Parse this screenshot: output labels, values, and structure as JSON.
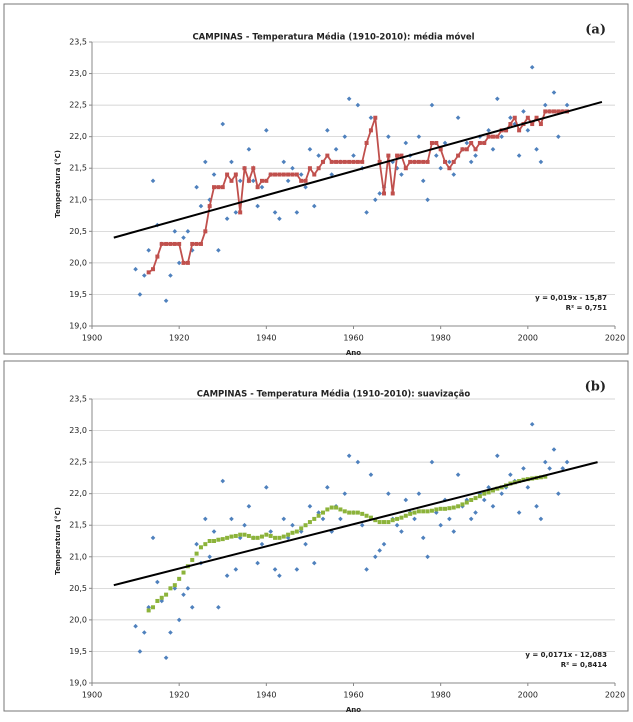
{
  "chart_data": [
    {
      "type": "scatter",
      "title": "CAMPINAS - Temperatura Média (1910-2010): média móvel",
      "panel_label": "(a)",
      "x_label": "Ano",
      "y_label": "Temperatura (°C)",
      "annotations": [
        "y = 0,019x - 15,87",
        "R² = 0,751"
      ],
      "xlim": [
        1900,
        2020
      ],
      "xticks": [
        1900,
        1920,
        1940,
        1960,
        1980,
        2000,
        2020
      ],
      "ylim": [
        19,
        23.5
      ],
      "yticks": [
        {
          "value": 19,
          "label": "19,0"
        },
        {
          "value": 19.5,
          "label": "19,5"
        },
        {
          "value": 20,
          "label": "20,0"
        },
        {
          "value": 20.5,
          "label": "20,5"
        },
        {
          "value": 21,
          "label": "21,0"
        },
        {
          "value": 21.5,
          "label": "21,5"
        },
        {
          "value": 22,
          "label": "22,0"
        },
        {
          "value": 22.5,
          "label": "22,5"
        },
        {
          "value": 23,
          "label": "23,0"
        },
        {
          "value": 23.5,
          "label": "23,5"
        }
      ],
      "grid": true,
      "series": [
        {
          "type": "scatter",
          "color": "#4f81bd",
          "x": [
            1910,
            1911,
            1912,
            1913,
            1914,
            1915,
            1916,
            1917,
            1918,
            1919,
            1920,
            1921,
            1922,
            1923,
            1924,
            1925,
            1926,
            1927,
            1928,
            1929,
            1930,
            1931,
            1932,
            1933,
            1934,
            1935,
            1936,
            1937,
            1938,
            1939,
            1940,
            1941,
            1942,
            1943,
            1944,
            1945,
            1946,
            1947,
            1948,
            1949,
            1950,
            1951,
            1952,
            1953,
            1954,
            1955,
            1956,
            1957,
            1958,
            1959,
            1960,
            1961,
            1962,
            1963,
            1964,
            1965,
            1966,
            1967,
            1968,
            1969,
            1970,
            1971,
            1972,
            1973,
            1974,
            1975,
            1976,
            1977,
            1978,
            1979,
            1980,
            1981,
            1982,
            1983,
            1984,
            1985,
            1986,
            1987,
            1988,
            1989,
            1990,
            1991,
            1992,
            1993,
            1994,
            1995,
            1996,
            1997,
            1998,
            1999,
            2000,
            2001,
            2002,
            2003,
            2004,
            2005,
            2006,
            2007,
            2008,
            2009
          ],
          "values": [
            19.9,
            19.5,
            19.8,
            20.2,
            21.3,
            20.6,
            20.3,
            19.4,
            19.8,
            20.5,
            20.0,
            20.4,
            20.5,
            20.2,
            21.2,
            20.9,
            21.6,
            21.0,
            21.4,
            20.2,
            22.2,
            20.7,
            21.6,
            20.8,
            21.3,
            21.5,
            21.8,
            21.3,
            20.9,
            21.2,
            22.1,
            21.4,
            20.8,
            20.7,
            21.6,
            21.3,
            21.5,
            20.8,
            21.4,
            21.2,
            21.8,
            20.9,
            21.7,
            21.6,
            22.1,
            21.4,
            21.8,
            21.6,
            22.0,
            22.6,
            21.7,
            22.5,
            21.5,
            20.8,
            22.3,
            21.0,
            21.1,
            21.2,
            22.0,
            21.6,
            21.5,
            21.4,
            21.9,
            21.7,
            21.6,
            22.0,
            21.3,
            21.0,
            22.5,
            21.7,
            21.5,
            21.9,
            21.6,
            21.4,
            22.3,
            21.8,
            21.9,
            21.6,
            21.7,
            22.0,
            21.9,
            22.1,
            21.8,
            22.6,
            22.0,
            22.1,
            22.3,
            22.2,
            21.7,
            22.4,
            22.1,
            23.1,
            21.8,
            21.6,
            22.5,
            22.4,
            22.7,
            22.0,
            22.4,
            22.5
          ]
        },
        {
          "type": "line",
          "marker": "square",
          "color": "#c0504d",
          "x": [
            1913,
            1914,
            1915,
            1916,
            1917,
            1918,
            1919,
            1920,
            1921,
            1922,
            1923,
            1924,
            1925,
            1926,
            1927,
            1928,
            1929,
            1930,
            1931,
            1932,
            1933,
            1934,
            1935,
            1936,
            1937,
            1938,
            1939,
            1940,
            1941,
            1942,
            1943,
            1944,
            1945,
            1946,
            1947,
            1948,
            1949,
            1950,
            1951,
            1952,
            1953,
            1954,
            1955,
            1956,
            1957,
            1958,
            1959,
            1960,
            1961,
            1962,
            1963,
            1964,
            1965,
            1966,
            1967,
            1968,
            1969,
            1970,
            1971,
            1972,
            1973,
            1974,
            1975,
            1976,
            1977,
            1978,
            1979,
            1980,
            1981,
            1982,
            1983,
            1984,
            1985,
            1986,
            1987,
            1988,
            1989,
            1990,
            1991,
            1992,
            1993,
            1994,
            1995,
            1996,
            1997,
            1998,
            1999,
            2000,
            2001,
            2002,
            2003,
            2004,
            2005,
            2006,
            2007,
            2008,
            2009
          ],
          "values": [
            19.85,
            19.9,
            20.1,
            20.3,
            20.3,
            20.3,
            20.3,
            20.3,
            20.0,
            20.0,
            20.3,
            20.3,
            20.3,
            20.5,
            20.9,
            21.2,
            21.2,
            21.2,
            21.4,
            21.3,
            21.4,
            20.8,
            21.5,
            21.3,
            21.5,
            21.2,
            21.3,
            21.3,
            21.4,
            21.4,
            21.4,
            21.4,
            21.4,
            21.4,
            21.4,
            21.3,
            21.3,
            21.5,
            21.4,
            21.5,
            21.6,
            21.7,
            21.6,
            21.6,
            21.6,
            21.6,
            21.6,
            21.6,
            21.6,
            21.6,
            21.9,
            22.1,
            22.3,
            21.6,
            21.1,
            21.7,
            21.1,
            21.7,
            21.7,
            21.5,
            21.6,
            21.6,
            21.6,
            21.6,
            21.6,
            21.9,
            21.9,
            21.8,
            21.6,
            21.5,
            21.6,
            21.7,
            21.8,
            21.8,
            21.9,
            21.8,
            21.9,
            21.9,
            22.0,
            22.0,
            22.0,
            22.1,
            22.1,
            22.2,
            22.3,
            22.1,
            22.2,
            22.3,
            22.2,
            22.3,
            22.2,
            22.4,
            22.4,
            22.4,
            22.4,
            22.4,
            22.4
          ]
        },
        {
          "type": "line",
          "color": "#000000",
          "x": [
            1905,
            2017
          ],
          "values": [
            20.4,
            22.55
          ]
        }
      ]
    },
    {
      "type": "scatter",
      "title": "CAMPINAS - Temperatura Média (1910-2010): suavização",
      "panel_label": "(b)",
      "x_label": "Ano",
      "y_label": "Temperatura (°C)",
      "annotations": [
        "y = 0,0171x - 12,083",
        "R² = 0,8414"
      ],
      "xlim": [
        1900,
        2020
      ],
      "xticks": [
        1900,
        1920,
        1940,
        1960,
        1980,
        2000,
        2020
      ],
      "ylim": [
        19,
        23.5
      ],
      "yticks": [
        {
          "value": 19,
          "label": "19,0"
        },
        {
          "value": 19.5,
          "label": "19,5"
        },
        {
          "value": 20,
          "label": "20,0"
        },
        {
          "value": 20.5,
          "label": "20,5"
        },
        {
          "value": 21,
          "label": "21,0"
        },
        {
          "value": 21.5,
          "label": "21,5"
        },
        {
          "value": 22,
          "label": "22,0"
        },
        {
          "value": 22.5,
          "label": "22,5"
        },
        {
          "value": 23,
          "label": "23,0"
        },
        {
          "value": 23.5,
          "label": "23,5"
        }
      ],
      "grid": true,
      "series": [
        {
          "type": "scatter",
          "color": "#4f81bd",
          "x": [
            1910,
            1911,
            1912,
            1913,
            1914,
            1915,
            1916,
            1917,
            1918,
            1919,
            1920,
            1921,
            1922,
            1923,
            1924,
            1925,
            1926,
            1927,
            1928,
            1929,
            1930,
            1931,
            1932,
            1933,
            1934,
            1935,
            1936,
            1937,
            1938,
            1939,
            1940,
            1941,
            1942,
            1943,
            1944,
            1945,
            1946,
            1947,
            1948,
            1949,
            1950,
            1951,
            1952,
            1953,
            1954,
            1955,
            1956,
            1957,
            1958,
            1959,
            1960,
            1961,
            1962,
            1963,
            1964,
            1965,
            1966,
            1967,
            1968,
            1969,
            1970,
            1971,
            1972,
            1973,
            1974,
            1975,
            1976,
            1977,
            1978,
            1979,
            1980,
            1981,
            1982,
            1983,
            1984,
            1985,
            1986,
            1987,
            1988,
            1989,
            1990,
            1991,
            1992,
            1993,
            1994,
            1995,
            1996,
            1997,
            1998,
            1999,
            2000,
            2001,
            2002,
            2003,
            2004,
            2005,
            2006,
            2007,
            2008,
            2009
          ],
          "values": [
            19.9,
            19.5,
            19.8,
            20.2,
            21.3,
            20.6,
            20.3,
            19.4,
            19.8,
            20.5,
            20.0,
            20.4,
            20.5,
            20.2,
            21.2,
            20.9,
            21.6,
            21.0,
            21.4,
            20.2,
            22.2,
            20.7,
            21.6,
            20.8,
            21.3,
            21.5,
            21.8,
            21.3,
            20.9,
            21.2,
            22.1,
            21.4,
            20.8,
            20.7,
            21.6,
            21.3,
            21.5,
            20.8,
            21.4,
            21.2,
            21.8,
            20.9,
            21.7,
            21.6,
            22.1,
            21.4,
            21.8,
            21.6,
            22.0,
            22.6,
            21.7,
            22.5,
            21.5,
            20.8,
            22.3,
            21.0,
            21.1,
            21.2,
            22.0,
            21.6,
            21.5,
            21.4,
            21.9,
            21.7,
            21.6,
            22.0,
            21.3,
            21.0,
            22.5,
            21.7,
            21.5,
            21.9,
            21.6,
            21.4,
            22.3,
            21.8,
            21.9,
            21.6,
            21.7,
            22.0,
            21.9,
            22.1,
            21.8,
            22.6,
            22.0,
            22.1,
            22.3,
            22.2,
            21.7,
            22.4,
            22.1,
            23.1,
            21.8,
            21.6,
            22.5,
            22.4,
            22.7,
            22.0,
            22.4,
            22.5
          ]
        },
        {
          "type": "scatter",
          "marker": "square",
          "color": "#8cb33a",
          "x": [
            1913,
            1914,
            1915,
            1916,
            1917,
            1918,
            1919,
            1920,
            1921,
            1922,
            1923,
            1924,
            1925,
            1926,
            1927,
            1928,
            1929,
            1930,
            1931,
            1932,
            1933,
            1934,
            1935,
            1936,
            1937,
            1938,
            1939,
            1940,
            1941,
            1942,
            1943,
            1944,
            1945,
            1946,
            1947,
            1948,
            1949,
            1950,
            1951,
            1952,
            1953,
            1954,
            1955,
            1956,
            1957,
            1958,
            1959,
            1960,
            1961,
            1962,
            1963,
            1964,
            1965,
            1966,
            1967,
            1968,
            1969,
            1970,
            1971,
            1972,
            1973,
            1974,
            1975,
            1976,
            1977,
            1978,
            1979,
            1980,
            1981,
            1982,
            1983,
            1984,
            1985,
            1986,
            1987,
            1988,
            1989,
            1990,
            1991,
            1992,
            1993,
            1994,
            1995,
            1996,
            1997,
            1998,
            1999,
            2000,
            2001,
            2002,
            2003,
            2004
          ],
          "values": [
            20.15,
            20.2,
            20.3,
            20.35,
            20.4,
            20.5,
            20.55,
            20.65,
            20.75,
            20.85,
            20.95,
            21.05,
            21.15,
            21.2,
            21.25,
            21.25,
            21.27,
            21.28,
            21.3,
            21.32,
            21.33,
            21.35,
            21.35,
            21.33,
            21.3,
            21.3,
            21.32,
            21.35,
            21.33,
            21.3,
            21.3,
            21.32,
            21.35,
            21.38,
            21.4,
            21.45,
            21.5,
            21.55,
            21.6,
            21.65,
            21.7,
            21.75,
            21.78,
            21.78,
            21.75,
            21.72,
            21.7,
            21.7,
            21.7,
            21.68,
            21.65,
            21.62,
            21.58,
            21.55,
            21.55,
            21.55,
            21.58,
            21.6,
            21.62,
            21.65,
            21.68,
            21.7,
            21.72,
            21.72,
            21.72,
            21.73,
            21.75,
            21.76,
            21.76,
            21.77,
            21.78,
            21.8,
            21.83,
            21.86,
            21.9,
            21.93,
            21.96,
            22.0,
            22.02,
            22.05,
            22.08,
            22.1,
            22.13,
            22.16,
            22.18,
            22.2,
            22.22,
            22.23,
            22.24,
            22.25,
            22.26,
            22.27
          ]
        },
        {
          "type": "line",
          "color": "#000000",
          "x": [
            1905,
            2016
          ],
          "values": [
            20.55,
            22.5
          ]
        }
      ]
    }
  ]
}
